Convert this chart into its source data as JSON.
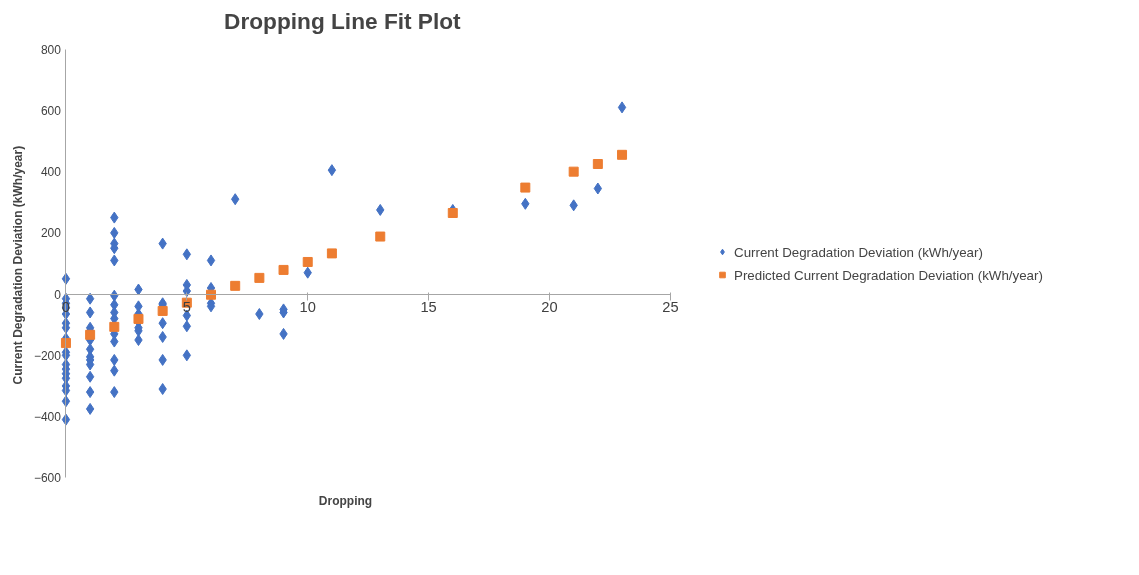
{
  "chart_data": {
    "type": "scatter",
    "title": "Dropping Line Fit  Plot",
    "xlabel": "Dropping",
    "ylabel": "Current Degradation  Deviation (kWh/year)",
    "xlim": [
      0,
      25
    ],
    "xticks": [
      0,
      5,
      10,
      15,
      20,
      25
    ],
    "ylim": [
      -600,
      800
    ],
    "yticks": [
      -600,
      -400,
      -200,
      0,
      200,
      400,
      600,
      800
    ],
    "grid": false,
    "legend": "right",
    "series": [
      {
        "name": "Current Degradation Deviation (kWh/year)",
        "color": "#4472c4",
        "marker": "diamond",
        "x": [
          0,
          0,
          0,
          0,
          0,
          0,
          0,
          0,
          0,
          0,
          0,
          0,
          0,
          0,
          0,
          0,
          0,
          0,
          1,
          1,
          1,
          1,
          1,
          1,
          1,
          1,
          1,
          1,
          1,
          1,
          2,
          2,
          2,
          2,
          2,
          2,
          2,
          2,
          2,
          2,
          2,
          2,
          2,
          2,
          3,
          3,
          3,
          3,
          3,
          3,
          3,
          4,
          4,
          4,
          4,
          4,
          4,
          4,
          5,
          5,
          5,
          5,
          5,
          5,
          6,
          6,
          6,
          6,
          7,
          8,
          9,
          9,
          9,
          10,
          11,
          13,
          16,
          19,
          21,
          22,
          23
        ],
        "values": [
          50,
          -15,
          -30,
          -45,
          -65,
          -95,
          -110,
          -145,
          -190,
          -200,
          -230,
          -245,
          -260,
          -275,
          -300,
          -315,
          -350,
          -410,
          -15,
          -60,
          -110,
          -120,
          -150,
          -180,
          -205,
          -215,
          -230,
          -270,
          -320,
          -375,
          250,
          200,
          165,
          150,
          110,
          -5,
          -35,
          -60,
          -80,
          -130,
          -155,
          -215,
          -250,
          -320,
          15,
          -40,
          -65,
          -90,
          -110,
          -120,
          -150,
          165,
          -30,
          -35,
          -95,
          -140,
          -215,
          -310,
          130,
          30,
          10,
          -70,
          -105,
          -200,
          110,
          20,
          -30,
          -40,
          310,
          -65,
          -50,
          -60,
          -130,
          70,
          405,
          275,
          275,
          295,
          290,
          345,
          610
        ]
      },
      {
        "name": "Predicted Current Degradation Deviation (kWh/year)",
        "color": "#ed7d31",
        "marker": "square",
        "x": [
          0,
          1,
          2,
          3,
          4,
          5,
          6,
          7,
          8,
          9,
          10,
          11,
          13,
          16,
          19,
          21,
          22,
          23
        ],
        "values": [
          -160,
          -133,
          -107,
          -81,
          -55,
          -28,
          -2,
          27,
          53,
          79,
          105,
          133,
          188,
          265,
          348,
          400,
          425,
          455
        ]
      }
    ]
  }
}
